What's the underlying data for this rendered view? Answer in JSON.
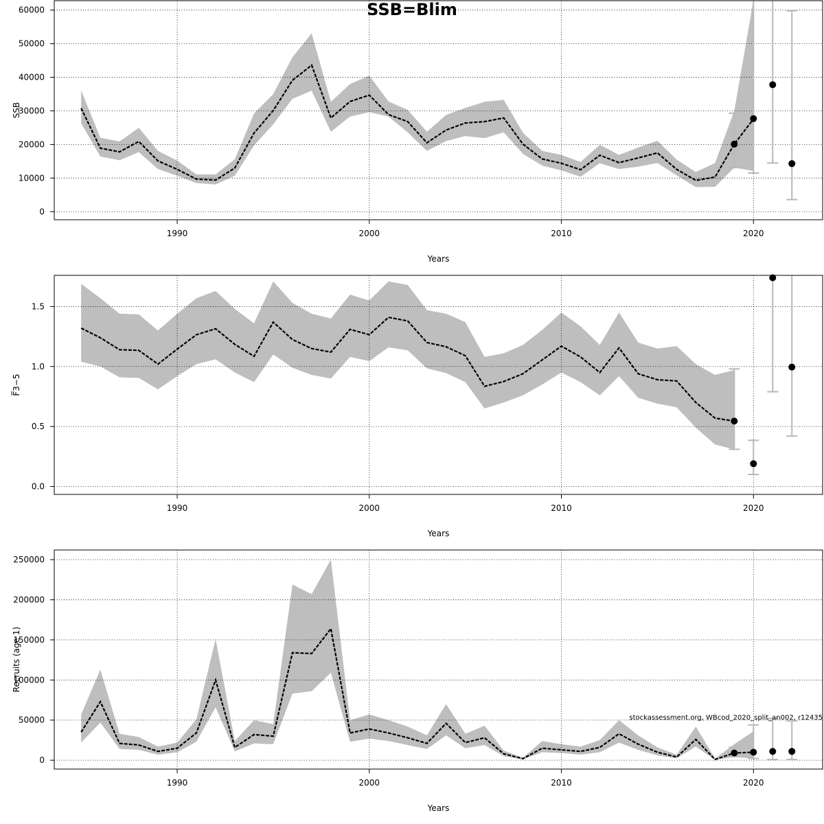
{
  "title": "SSB=Blim",
  "watermark": "stockassessment.org, WBcod_2020_split_an002, r12435",
  "colors": {
    "band": "#bebebe",
    "line": "#000000",
    "grid": "#000000",
    "whisker": "#b8b8b8"
  },
  "chart_data": [
    {
      "type": "line",
      "name": "ssb",
      "ylabel": "SSB",
      "xlabel": "Years",
      "xlim": [
        1983.6,
        2023.6
      ],
      "ylim": [
        -2400,
        62800
      ],
      "xticks": [
        1990,
        2000,
        2010,
        2020
      ],
      "yticks": [
        0,
        10000,
        20000,
        30000,
        40000,
        50000,
        60000
      ],
      "grid": true,
      "series": [
        {
          "x": [
            1985,
            1986,
            1987,
            1988,
            1989,
            1990,
            1991,
            1992,
            1993,
            1994,
            1995,
            1996,
            1997,
            1998,
            1999,
            2000,
            2001,
            2002,
            2003,
            2004,
            2005,
            2006,
            2007,
            2008,
            2009,
            2010,
            2011,
            2012,
            2013,
            2014,
            2015,
            2016,
            2017,
            2018,
            2019,
            2020
          ],
          "y": [
            30800,
            18900,
            17800,
            20900,
            15100,
            12600,
            9700,
            9400,
            13000,
            23400,
            30100,
            39100,
            43600,
            27900,
            32800,
            34700,
            28900,
            26800,
            20500,
            24300,
            26400,
            26800,
            27900,
            20100,
            15700,
            14400,
            12500,
            16800,
            14600,
            16000,
            17500,
            12600,
            9300,
            10300,
            20100,
            27600
          ],
          "lower": [
            26300,
            16400,
            15300,
            17700,
            12700,
            10700,
            8500,
            8100,
            10700,
            19700,
            26000,
            33600,
            36000,
            23800,
            28300,
            29600,
            28300,
            23600,
            18100,
            21000,
            22500,
            21900,
            23600,
            17200,
            13700,
            12300,
            10400,
            14400,
            12700,
            13400,
            14500,
            10800,
            7300,
            7400,
            13100,
            12100
          ],
          "upper": [
            36100,
            22000,
            20900,
            25000,
            18100,
            15200,
            11100,
            11100,
            15600,
            29200,
            35000,
            46000,
            53100,
            32700,
            38000,
            40500,
            32800,
            30300,
            23800,
            28800,
            30900,
            32700,
            33300,
            23500,
            18100,
            16900,
            14800,
            19900,
            16900,
            19100,
            21100,
            15500,
            11800,
            14500,
            30000,
            63000
          ]
        }
      ],
      "points": [
        {
          "x": 2019,
          "y": 20100,
          "lower": 13100,
          "upper": 29300
        },
        {
          "x": 2020,
          "y": 27700,
          "lower": 11500,
          "upper": 63000
        },
        {
          "x": 2021,
          "y": 37800,
          "lower": 14500,
          "upper": 63000
        },
        {
          "x": 2022,
          "y": 14300,
          "lower": 3600,
          "upper": 59800
        }
      ]
    },
    {
      "type": "line",
      "name": "fbar",
      "ylabel": "F̅3−5",
      "xlabel": "Years",
      "xlim": [
        1983.6,
        2023.6
      ],
      "ylim": [
        -0.066,
        1.76
      ],
      "xticks": [
        1990,
        2000,
        2010,
        2020
      ],
      "yticks": [
        0.0,
        0.5,
        1.0,
        1.5
      ],
      "yticklabels": [
        "0.0",
        "0.5",
        "1.0",
        "1.5"
      ],
      "grid": true,
      "series": [
        {
          "x": [
            1985,
            1986,
            1987,
            1988,
            1989,
            1990,
            1991,
            1992,
            1993,
            1994,
            1995,
            1996,
            1997,
            1998,
            1999,
            2000,
            2001,
            2002,
            2003,
            2004,
            2005,
            2006,
            2007,
            2008,
            2009,
            2010,
            2011,
            2012,
            2013,
            2014,
            2015,
            2016,
            2017,
            2018,
            2019
          ],
          "y": [
            1.32,
            1.24,
            1.14,
            1.135,
            1.02,
            1.145,
            1.265,
            1.315,
            1.185,
            1.085,
            1.37,
            1.225,
            1.15,
            1.12,
            1.31,
            1.265,
            1.41,
            1.38,
            1.2,
            1.165,
            1.09,
            0.835,
            0.875,
            0.94,
            1.055,
            1.17,
            1.08,
            0.95,
            1.155,
            0.94,
            0.89,
            0.88,
            0.7,
            0.57,
            0.545
          ],
          "lower": [
            1.04,
            1.0,
            0.91,
            0.905,
            0.81,
            0.92,
            1.02,
            1.06,
            0.95,
            0.87,
            1.1,
            0.99,
            0.93,
            0.9,
            1.08,
            1.045,
            1.16,
            1.135,
            0.985,
            0.945,
            0.87,
            0.65,
            0.7,
            0.76,
            0.85,
            0.95,
            0.87,
            0.76,
            0.92,
            0.74,
            0.69,
            0.66,
            0.49,
            0.35,
            0.31
          ],
          "upper": [
            1.69,
            1.57,
            1.44,
            1.435,
            1.3,
            1.44,
            1.57,
            1.63,
            1.48,
            1.36,
            1.71,
            1.53,
            1.44,
            1.4,
            1.6,
            1.55,
            1.71,
            1.68,
            1.47,
            1.44,
            1.37,
            1.08,
            1.11,
            1.18,
            1.305,
            1.45,
            1.335,
            1.18,
            1.45,
            1.2,
            1.15,
            1.17,
            1.02,
            0.93,
            0.97
          ]
        }
      ],
      "points": [
        {
          "x": 2019,
          "y": 0.545,
          "lower": 0.31,
          "upper": 0.98
        },
        {
          "x": 2020,
          "y": 0.19,
          "lower": 0.1,
          "upper": 0.385
        },
        {
          "x": 2021,
          "y": 1.74,
          "lower": 0.79,
          "upper": 1.76
        },
        {
          "x": 2022,
          "y": 0.995,
          "lower": 0.42,
          "upper": 1.76
        }
      ]
    },
    {
      "type": "line",
      "name": "recruits",
      "ylabel": "Recruits (age 1)",
      "xlabel": "Years",
      "xlim": [
        1983.6,
        2023.6
      ],
      "ylim": [
        -11000,
        262000
      ],
      "xticks": [
        1990,
        2000,
        2010,
        2020
      ],
      "yticks": [
        0,
        50000,
        100000,
        150000,
        200000,
        250000
      ],
      "grid": true,
      "series": [
        {
          "x": [
            1985,
            1986,
            1987,
            1988,
            1989,
            1990,
            1991,
            1992,
            1993,
            1994,
            1995,
            1996,
            1997,
            1998,
            1999,
            2000,
            2001,
            2002,
            2003,
            2004,
            2005,
            2006,
            2007,
            2008,
            2009,
            2010,
            2011,
            2012,
            2013,
            2014,
            2015,
            2016,
            2017,
            2018,
            2019,
            2020
          ],
          "y": [
            35000,
            73000,
            21000,
            19000,
            11000,
            15000,
            34000,
            100000,
            16000,
            32000,
            30000,
            134000,
            133000,
            164000,
            34000,
            39000,
            34000,
            28000,
            21000,
            46000,
            22000,
            28000,
            8000,
            2000,
            15000,
            13000,
            11000,
            16000,
            33000,
            20000,
            10000,
            4000,
            26000,
            1000,
            9000,
            10000
          ],
          "lower": [
            22000,
            47000,
            14000,
            13000,
            7000,
            10000,
            23000,
            66000,
            11000,
            21000,
            20000,
            83000,
            86000,
            109000,
            23000,
            27000,
            24000,
            19000,
            14000,
            31000,
            15000,
            19000,
            5000,
            1000,
            10000,
            9000,
            7000,
            10000,
            22000,
            13000,
            6000,
            2500,
            17000,
            500,
            4000,
            2000
          ],
          "upper": [
            57000,
            113000,
            33000,
            29000,
            17000,
            22000,
            51000,
            151000,
            24000,
            50000,
            45000,
            219000,
            207000,
            250000,
            50000,
            57000,
            50000,
            42000,
            31000,
            70000,
            33000,
            43000,
            12000,
            3000,
            24000,
            20000,
            17000,
            25000,
            50000,
            31000,
            16000,
            7000,
            42000,
            2000,
            20000,
            36000
          ]
        }
      ],
      "points": [
        {
          "x": 2019,
          "y": 9000,
          "lower": 4500,
          "upper": 16000
        },
        {
          "x": 2020,
          "y": 10000,
          "lower": 2000,
          "upper": 44000
        },
        {
          "x": 2021,
          "y": 11000,
          "lower": 1000,
          "upper": 52000
        },
        {
          "x": 2022,
          "y": 11000,
          "lower": 1000,
          "upper": 49000
        }
      ]
    }
  ]
}
